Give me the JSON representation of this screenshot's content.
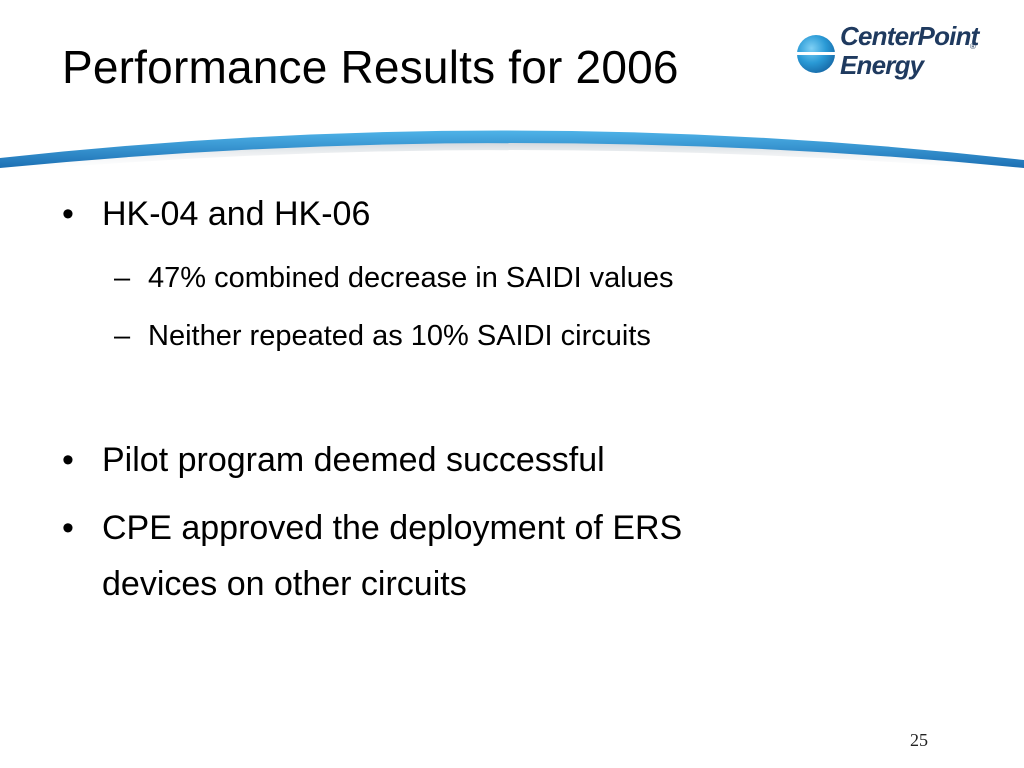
{
  "slide": {
    "title": "Performance Results for 2006",
    "logo": {
      "line1": "CenterPoint",
      "line2": "Energy",
      "trademark": "®",
      "mark_icon": "centerpoint-sphere-icon",
      "brand_color": "#1f3a5f",
      "accent_color": "#2a9ad6"
    },
    "swoosh_icon": "blue-swoosh-divider",
    "swoosh_color": "#2a8fd0",
    "bullets": [
      {
        "marker": "•",
        "text": "HK-04 and HK-06",
        "sub": [
          {
            "marker": "–",
            "text": "47% combined decrease in SAIDI values"
          },
          {
            "marker": "–",
            "text": "Neither repeated as 10% SAIDI circuits"
          }
        ]
      },
      {
        "marker": "•",
        "text": "Pilot program deemed successful"
      },
      {
        "marker": "•",
        "line1": "CPE approved the deployment of ERS",
        "line2": "devices on other circuits"
      }
    ],
    "page_number": "25"
  }
}
